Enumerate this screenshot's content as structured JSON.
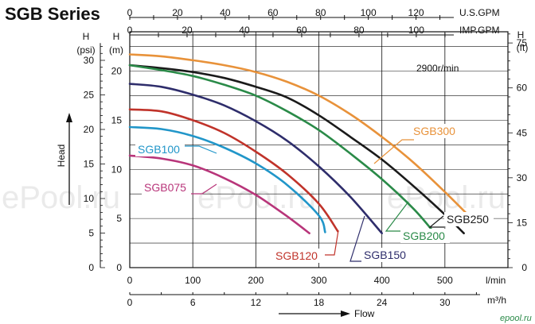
{
  "chart_data": {
    "type": "line",
    "title": "SGB Series",
    "speed_note": "2900r/min",
    "ylabel": "Head",
    "xlabel": "Flow",
    "watermark": "ePool.ru",
    "footer_logo": "epool.ru",
    "axes": {
      "flow_lmin": {
        "unit": "l/min",
        "ticks": [
          0,
          100,
          200,
          300,
          400,
          500
        ],
        "range": [
          0,
          600
        ]
      },
      "flow_m3h": {
        "unit": "m³/h",
        "ticks": [
          0,
          6,
          12,
          18,
          24,
          30
        ],
        "range": [
          0,
          36
        ]
      },
      "flow_usgpm": {
        "unit": "U.S.GPM",
        "ticks": [
          0,
          20,
          40,
          60,
          80,
          100,
          120
        ]
      },
      "flow_impgpm": {
        "unit": "IMP.GPM",
        "ticks": [
          0,
          20,
          40,
          60,
          80,
          100
        ]
      },
      "head_m": {
        "label": "H",
        "unit": "(m)",
        "ticks": [
          0,
          5,
          10,
          15,
          20
        ],
        "range": [
          0,
          24
        ]
      },
      "head_psi": {
        "label": "H",
        "unit": "(psi)",
        "ticks": [
          0,
          5,
          10,
          15,
          20,
          25,
          30
        ]
      },
      "head_ft": {
        "label": "H",
        "unit": "(ft)",
        "ticks": [
          0,
          15,
          30,
          45,
          60,
          75
        ]
      }
    },
    "grid": true,
    "series": [
      {
        "name": "SGB300",
        "color": "#e8923a",
        "x": [
          0,
          50,
          100,
          150,
          200,
          250,
          300,
          350,
          400,
          450,
          500,
          550
        ],
        "y": [
          21.7,
          21.5,
          21.1,
          20.6,
          19.9,
          18.9,
          17.5,
          15.6,
          13.3,
          10.7,
          7.7,
          4.5
        ]
      },
      {
        "name": "SGB250",
        "color": "#1a1a1a",
        "x": [
          0,
          50,
          100,
          150,
          200,
          250,
          300,
          350,
          400,
          450,
          500,
          530
        ],
        "y": [
          20.6,
          20.3,
          19.9,
          19.3,
          18.4,
          17.3,
          15.5,
          13.3,
          11.0,
          8.3,
          5.4,
          3.5
        ]
      },
      {
        "name": "SGB200",
        "color": "#2a8a48",
        "x": [
          0,
          50,
          100,
          150,
          200,
          250,
          300,
          350,
          400,
          450,
          480
        ],
        "y": [
          20.6,
          20.1,
          19.5,
          18.6,
          17.5,
          15.9,
          14.0,
          11.6,
          9.0,
          6.0,
          3.8
        ]
      },
      {
        "name": "SGB150",
        "color": "#2e2d6b",
        "x": [
          0,
          50,
          100,
          150,
          200,
          250,
          300,
          350,
          400
        ],
        "y": [
          18.7,
          18.4,
          17.6,
          16.5,
          14.9,
          12.9,
          10.3,
          7.2,
          3.5
        ]
      },
      {
        "name": "SGB120",
        "color": "#c0332a",
        "x": [
          0,
          50,
          100,
          150,
          200,
          250,
          300,
          330
        ],
        "y": [
          16.1,
          15.9,
          15.0,
          13.7,
          11.8,
          9.5,
          6.5,
          3.7
        ]
      },
      {
        "name": "SGB100",
        "color": "#2196c9",
        "x": [
          0,
          50,
          100,
          150,
          200,
          250,
          300,
          310
        ],
        "y": [
          14.3,
          14.1,
          13.4,
          12.2,
          10.6,
          8.4,
          5.3,
          3.6
        ]
      },
      {
        "name": "SGB075",
        "color": "#b8357a",
        "x": [
          0,
          50,
          100,
          150,
          200,
          250,
          285
        ],
        "y": [
          11.4,
          11.1,
          10.4,
          9.1,
          7.4,
          5.2,
          3.5
        ]
      }
    ]
  }
}
